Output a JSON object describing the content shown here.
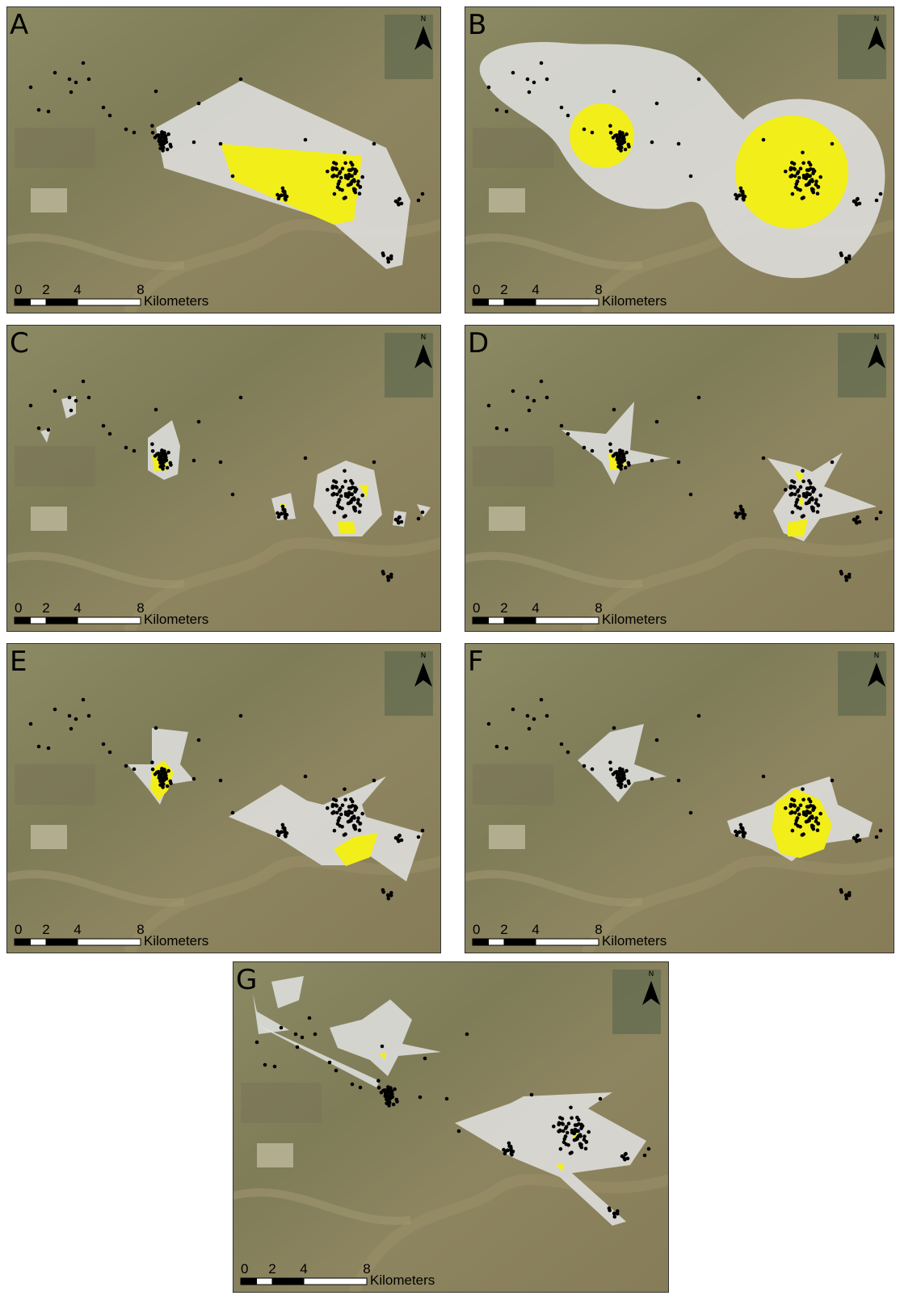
{
  "panels": [
    {
      "label": "A"
    },
    {
      "label": "B"
    },
    {
      "label": "C"
    },
    {
      "label": "D"
    },
    {
      "label": "E"
    },
    {
      "label": "F"
    },
    {
      "label": "G"
    }
  ],
  "scale_bar": {
    "ticks": [
      "0",
      "2",
      "4",
      "8"
    ],
    "unit": "Kilometers"
  },
  "north_label": "N"
}
